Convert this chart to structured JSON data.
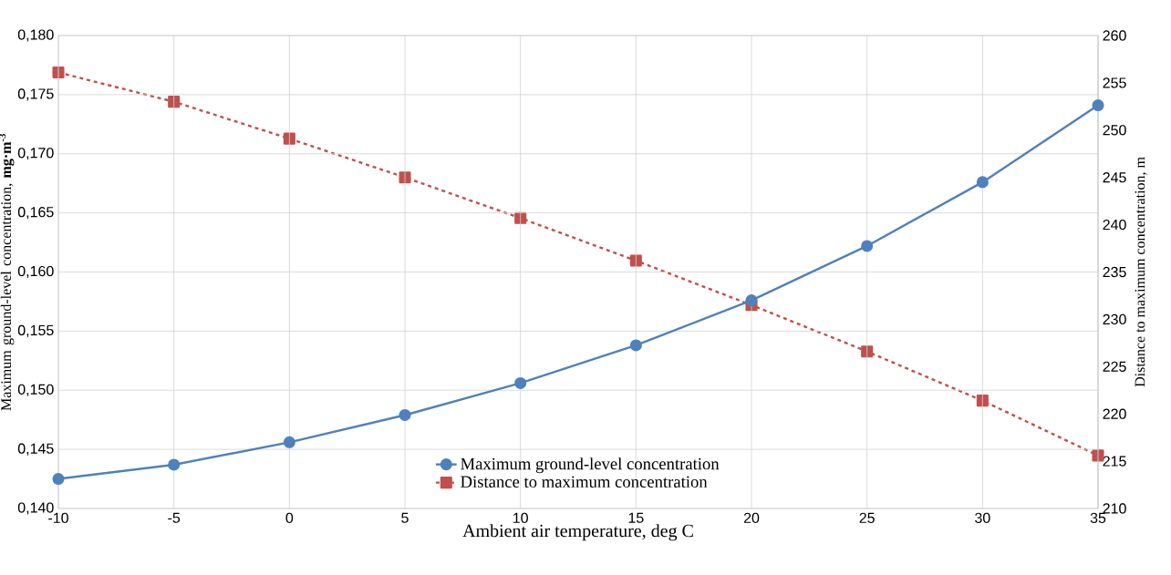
{
  "chart_data": {
    "type": "line",
    "xlabel": "Ambient air temperature, deg C",
    "ylabel": "Maximum ground-level concentration, **mg·m$^{-3}$**",
    "y2label": "Distance to maximum concentration, m",
    "x": [
      -10,
      -5,
      0,
      5,
      10,
      15,
      20,
      25,
      30,
      35
    ],
    "series": [
      {
        "name": "Maximum ground-level concentration",
        "color": "#4f81bd",
        "marker": "circle",
        "line_style": "solid",
        "axis": "y",
        "values": [
          0.1425,
          0.1437,
          0.1456,
          0.1479,
          0.1506,
          0.1538,
          0.1576,
          0.1622,
          0.1676,
          0.1741
        ]
      },
      {
        "name": "Distance to maximum concentration",
        "color": "#c0504d",
        "marker": "square",
        "line_style": "dashed",
        "axis": "y2",
        "values": [
          256.1,
          253.0,
          249.1,
          245.0,
          240.7,
          236.2,
          231.5,
          226.6,
          221.4,
          215.6
        ]
      }
    ],
    "xlim": [
      -10,
      35
    ],
    "xticks": [
      -10,
      -5,
      0,
      5,
      10,
      15,
      20,
      25,
      30,
      35
    ],
    "ylim": [
      0.14,
      0.18
    ],
    "yticks": [
      {
        "value": 0.14,
        "label": "0,140"
      },
      {
        "value": 0.145,
        "label": "0,145"
      },
      {
        "value": 0.15,
        "label": "0,150"
      },
      {
        "value": 0.155,
        "label": "0,155"
      },
      {
        "value": 0.16,
        "label": "0,160"
      },
      {
        "value": 0.165,
        "label": "0,165"
      },
      {
        "value": 0.17,
        "label": "0,170"
      },
      {
        "value": 0.175,
        "label": "0,175"
      },
      {
        "value": 0.18,
        "label": "0,180"
      }
    ],
    "y2lim": [
      210,
      260
    ],
    "y2ticks": [
      210,
      215,
      220,
      225,
      230,
      235,
      240,
      245,
      250,
      255,
      260
    ],
    "grid": true,
    "legend": "bottom"
  }
}
